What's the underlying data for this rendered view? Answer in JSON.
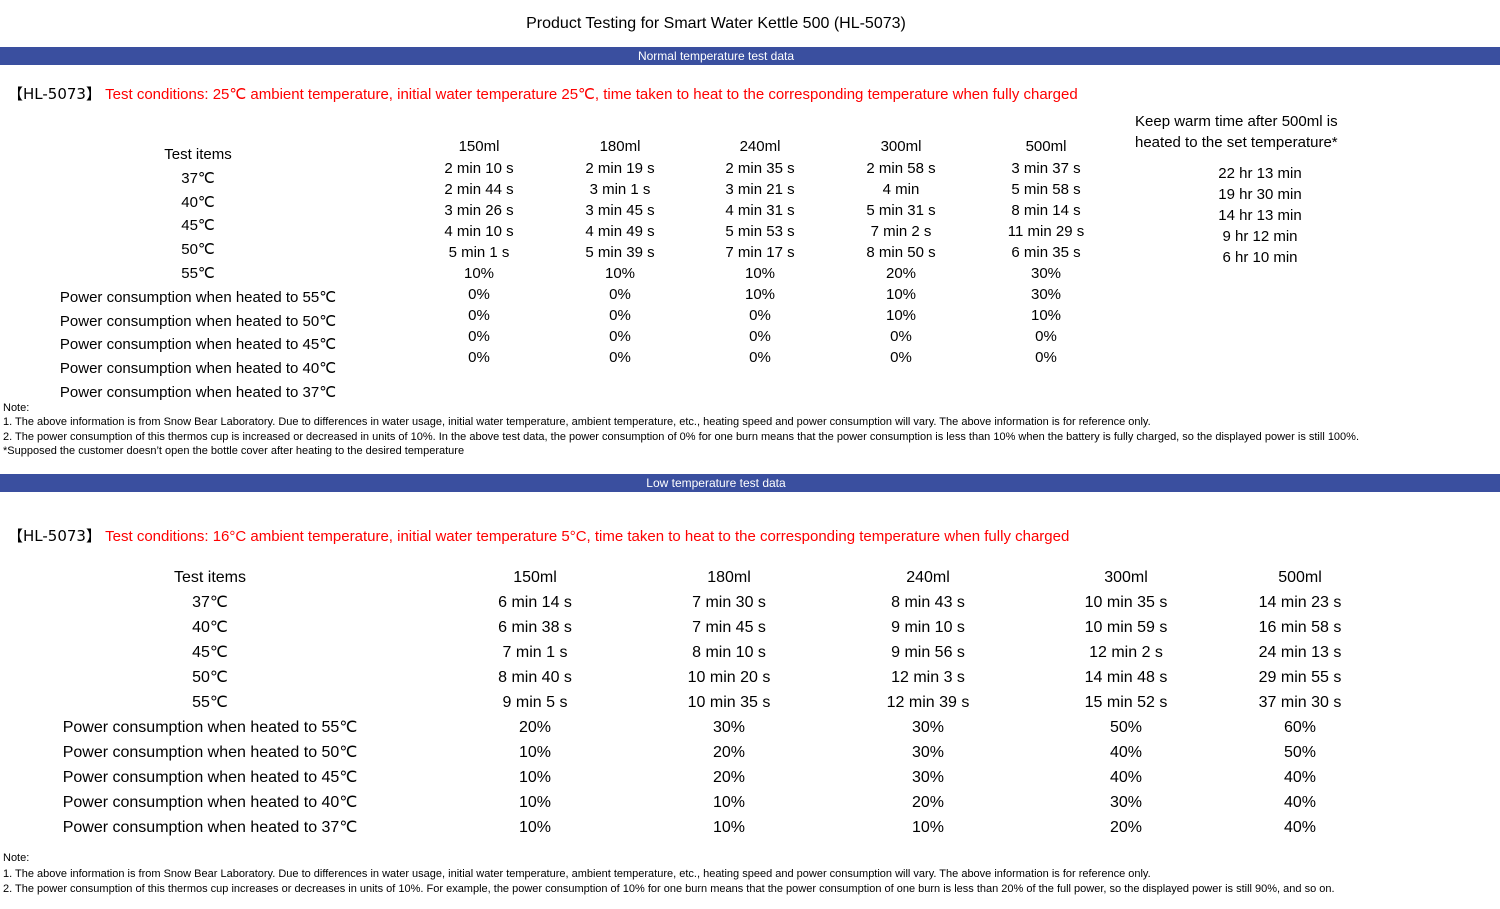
{
  "page": {
    "title": "Product Testing for Smart Water Kettle 500 (HL-5073)"
  },
  "colors": {
    "banner_blue": "#3A4F9F",
    "condition_red": "#FE0000"
  },
  "normal_section": {
    "banner": "Normal temperature test data",
    "model": "【HL-5073】",
    "conditions": "Test conditions: 25℃ ambient temperature, initial water temperature 25℃, time taken to heat to the corresponding temperature when fully charged",
    "row_labels": [
      "Test items",
      "37℃",
      "40℃",
      "45℃",
      "50℃",
      "55℃",
      "Power consumption when heated to 55℃",
      "Power consumption when heated to 50℃",
      "Power consumption when heated to 45℃",
      "Power consumption when heated to 40℃",
      "Power consumption when heated to 37℃"
    ],
    "columns": [
      {
        "header": "150ml",
        "values": [
          "2 min 10 s",
          "2 min 44 s",
          "3 min 26 s",
          "4 min 10 s",
          "5 min 1 s",
          "10%",
          "0%",
          "0%",
          "0%",
          "0%"
        ]
      },
      {
        "header": "180ml",
        "values": [
          "2 min 19 s",
          "3 min 1 s",
          "3 min 45 s",
          "4 min 49 s",
          "5 min 39 s",
          "10%",
          "0%",
          "0%",
          "0%",
          "0%"
        ]
      },
      {
        "header": "240ml",
        "values": [
          "2 min 35 s",
          "3 min 21 s",
          "4 min 31 s",
          "5 min 53 s",
          "7 min 17 s",
          "10%",
          "10%",
          "0%",
          "0%",
          "0%"
        ]
      },
      {
        "header": "300ml",
        "values": [
          "2 min 58 s",
          "4 min",
          "5 min 31 s",
          "7 min 2 s",
          "8 min 50 s",
          "20%",
          "10%",
          "10%",
          "0%",
          "0%"
        ]
      },
      {
        "header": "500ml",
        "values": [
          "3 min 37 s",
          "5 min 58 s",
          "8 min 14 s",
          "11 min 29 s",
          "6 min 35 s",
          "30%",
          "30%",
          "10%",
          "0%",
          "0%"
        ]
      }
    ],
    "keep_warm": {
      "header_line1": "Keep warm time after 500ml is",
      "header_line2": "heated to the set temperature*",
      "values": [
        "22 hr 13 min",
        "19 hr 30 min",
        "14 hr 13 min",
        "9 hr 12 min",
        "6 hr 10 min"
      ]
    },
    "notes": [
      "Note:",
      "1. The above information is from Snow Bear Laboratory. Due to differences in water usage, initial water temperature, ambient temperature, etc., heating speed and power consumption will vary. The above information is for reference only.",
      "2. The power consumption of this thermos cup is increased or decreased in units of 10%. In the above test data, the power consumption of 0% for one burn means that the power consumption is less than 10% when the battery is fully charged, so the displayed power is still 100%.",
      "*Supposed the customer doesn’t open the bottle cover after heating to the desired temperature"
    ]
  },
  "low_section": {
    "banner": "Low temperature test data",
    "model": "【HL-5073】",
    "conditions": "Test conditions: 16°C ambient temperature, initial water temperature 5°C, time taken to heat to the corresponding temperature when fully charged",
    "row_labels": [
      "Test items",
      "37℃",
      "40℃",
      "45℃",
      "50℃",
      "55℃",
      "Power consumption when heated to 55℃",
      "Power consumption when heated to 50℃",
      "Power consumption when heated to 45℃",
      "Power consumption when heated to 40℃",
      "Power consumption when heated to 37℃"
    ],
    "columns": [
      {
        "header": "150ml",
        "values": [
          "6 min 14 s",
          "6 min 38 s",
          "7 min 1 s",
          "8 min 40 s",
          "9 min 5 s",
          "20%",
          "10%",
          "10%",
          "10%",
          "10%"
        ]
      },
      {
        "header": "180ml",
        "values": [
          "7 min 30 s",
          "7 min 45 s",
          "8 min 10 s",
          "10 min 20 s",
          "10 min 35 s",
          "30%",
          "20%",
          "20%",
          "10%",
          "10%"
        ]
      },
      {
        "header": "240ml",
        "values": [
          "8 min 43 s",
          "9 min 10 s",
          "9 min 56 s",
          "12 min 3 s",
          "12 min 39 s",
          "30%",
          "30%",
          "30%",
          "20%",
          "10%"
        ]
      },
      {
        "header": "300ml",
        "values": [
          "10 min 35 s",
          "10 min 59 s",
          "12 min 2 s",
          "14 min 48 s",
          "15 min 52 s",
          "50%",
          "40%",
          "40%",
          "30%",
          "20%"
        ]
      },
      {
        "header": "500ml",
        "values": [
          "14 min 23 s",
          "16 min 58 s",
          "24 min 13 s",
          "29 min 55 s",
          "37 min 30 s",
          "60%",
          "50%",
          "40%",
          "40%",
          "40%"
        ]
      }
    ],
    "notes": [
      "Note:",
      "1. The above information is from Snow Bear Laboratory. Due to differences in water usage, initial water temperature, ambient temperature, etc., heating speed and power consumption will vary. The above information is for reference only.",
      "2. The power consumption of this thermos cup increases or decreases in units of 10%. For example, the power consumption of 10% for one burn means that the power consumption of one burn is less than 20% of the full power, so the displayed power is still 90%, and so on."
    ]
  }
}
